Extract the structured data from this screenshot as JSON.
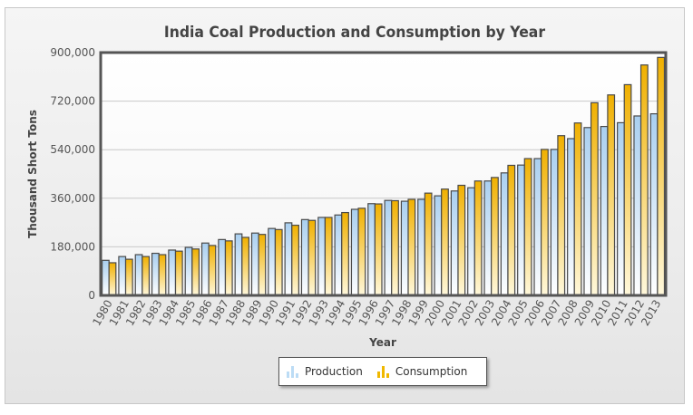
{
  "chart_data": {
    "type": "bar",
    "title": "India Coal Production and Consumption by Year",
    "xlabel": "Year",
    "ylabel": "Thousand Short Tons",
    "ylim": [
      0,
      900000
    ],
    "yticks": [
      0,
      180000,
      360000,
      540000,
      720000,
      900000
    ],
    "ytick_labels": [
      "0",
      "180,000",
      "360,000",
      "540,000",
      "720,000",
      "900,000"
    ],
    "grid": true,
    "legend_position": "bottom-center",
    "categories": [
      "1980",
      "1981",
      "1982",
      "1983",
      "1984",
      "1985",
      "1986",
      "1987",
      "1988",
      "1989",
      "1990",
      "1991",
      "1992",
      "1993",
      "1994",
      "1995",
      "1996",
      "1997",
      "1998",
      "1999",
      "2000",
      "2001",
      "2002",
      "2003",
      "2004",
      "2005",
      "2006",
      "2007",
      "2008",
      "2009",
      "2010",
      "2011",
      "2012",
      "2013"
    ],
    "series": [
      {
        "name": "Production",
        "color_top": "#a9cff0",
        "color_bottom": "#ffffff",
        "values": [
          130000,
          144000,
          151000,
          156000,
          168000,
          178000,
          194000,
          207000,
          228000,
          231000,
          248000,
          269000,
          281000,
          289000,
          298000,
          319000,
          340000,
          352000,
          349000,
          356000,
          369000,
          387000,
          399000,
          424000,
          454000,
          483000,
          507000,
          541000,
          581000,
          622000,
          626000,
          640000,
          665000,
          673000
        ]
      },
      {
        "name": "Consumption",
        "color_top": "#f0b000",
        "color_bottom": "#fff8dc",
        "values": [
          121000,
          134000,
          144000,
          151000,
          164000,
          172000,
          185000,
          202000,
          215000,
          226000,
          244000,
          260000,
          278000,
          289000,
          307000,
          323000,
          339000,
          351000,
          356000,
          379000,
          394000,
          408000,
          424000,
          437000,
          482000,
          507000,
          541000,
          592000,
          639000,
          714000,
          743000,
          781000,
          854000,
          882000
        ]
      }
    ]
  },
  "legend": {
    "items": [
      {
        "label": "Production",
        "icon": "bar-chart-icon",
        "color": "#a9cff0"
      },
      {
        "label": "Consumption",
        "icon": "bar-chart-icon",
        "color": "#f0b000"
      }
    ]
  }
}
